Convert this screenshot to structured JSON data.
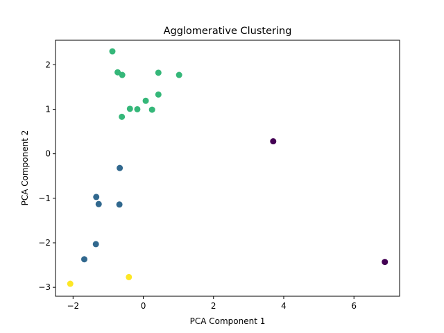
{
  "chart_data": {
    "type": "scatter",
    "title": "Agglomerative Clustering",
    "xlabel": "PCA Component 1",
    "ylabel": "PCA Component 2",
    "xlim": [
      -2.5,
      7.3
    ],
    "ylim": [
      -3.2,
      2.55
    ],
    "xticks": [
      -2,
      0,
      2,
      4,
      6
    ],
    "yticks": [
      -3,
      -2,
      -1,
      0,
      1,
      2
    ],
    "grid": false,
    "legend": "none",
    "cluster_colors": [
      "#440154",
      "#31688e",
      "#35b779",
      "#fde725"
    ],
    "points": [
      {
        "x": 3.7,
        "y": 0.28,
        "cluster": 0
      },
      {
        "x": 6.88,
        "y": -2.43,
        "cluster": 0
      },
      {
        "x": -0.67,
        "y": -0.32,
        "cluster": 1
      },
      {
        "x": -1.34,
        "y": -0.97,
        "cluster": 1
      },
      {
        "x": -1.27,
        "y": -1.13,
        "cluster": 1
      },
      {
        "x": -0.68,
        "y": -1.14,
        "cluster": 1
      },
      {
        "x": -1.35,
        "y": -2.03,
        "cluster": 1
      },
      {
        "x": -1.68,
        "y": -2.37,
        "cluster": 1
      },
      {
        "x": -0.88,
        "y": 2.3,
        "cluster": 2
      },
      {
        "x": -0.73,
        "y": 1.83,
        "cluster": 2
      },
      {
        "x": -0.6,
        "y": 1.77,
        "cluster": 2
      },
      {
        "x": 0.43,
        "y": 1.82,
        "cluster": 2
      },
      {
        "x": 1.02,
        "y": 1.77,
        "cluster": 2
      },
      {
        "x": 0.43,
        "y": 1.33,
        "cluster": 2
      },
      {
        "x": 0.07,
        "y": 1.19,
        "cluster": 2
      },
      {
        "x": -0.38,
        "y": 1.01,
        "cluster": 2
      },
      {
        "x": -0.17,
        "y": 1.0,
        "cluster": 2
      },
      {
        "x": 0.25,
        "y": 0.99,
        "cluster": 2
      },
      {
        "x": -0.61,
        "y": 0.83,
        "cluster": 2
      },
      {
        "x": -2.08,
        "y": -2.92,
        "cluster": 3
      },
      {
        "x": -0.41,
        "y": -2.77,
        "cluster": 3
      }
    ]
  }
}
